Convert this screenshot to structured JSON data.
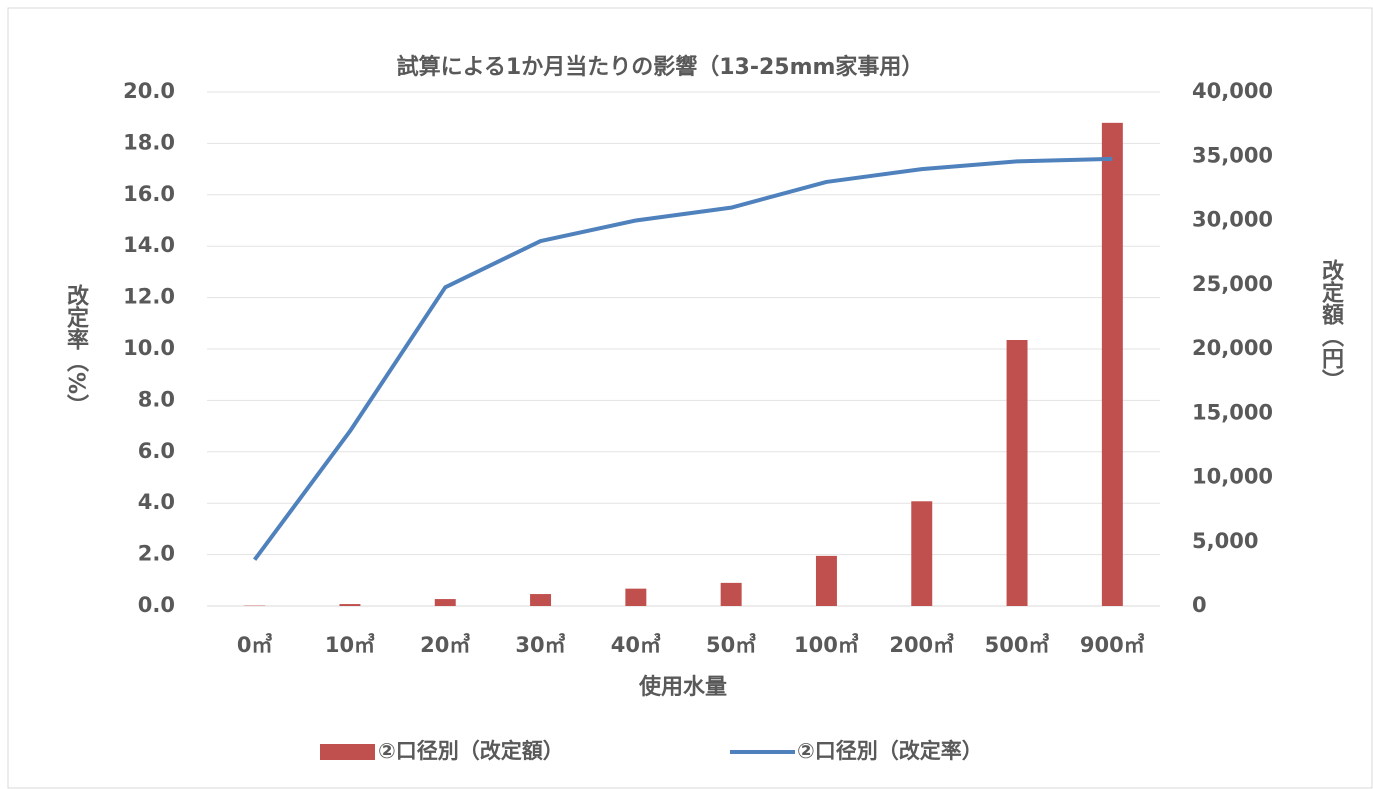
{
  "chart_data": {
    "type": "bar_line",
    "title": "試算による1か月当たりの影響（13-25mm家事用）",
    "x_label": "使用水量",
    "y_label": "改定率（%）",
    "y2_label": "改定額（円）",
    "categories": [
      "0㎥",
      "10㎥",
      "20㎥",
      "30㎥",
      "40㎥",
      "50㎥",
      "100㎥",
      "200㎥",
      "500㎥",
      "900㎥"
    ],
    "series": [
      {
        "name": "②口径別（改定額）",
        "type": "bar",
        "axis": "y2",
        "color": "#c0504d",
        "values": [
          30,
          150,
          540,
          930,
          1350,
          1800,
          3900,
          8150,
          20700,
          37600
        ]
      },
      {
        "name": "②口径別（改定率）",
        "type": "line",
        "axis": "y",
        "color": "#4f81bd",
        "values": [
          1.8,
          6.8,
          12.4,
          14.2,
          15.0,
          15.5,
          16.5,
          17.0,
          17.3,
          17.4
        ]
      }
    ],
    "ylim": [
      0,
      20
    ],
    "yticks": [
      {
        "value": 0,
        "label": "0.0"
      },
      {
        "value": 2,
        "label": "2.0"
      },
      {
        "value": 4,
        "label": "4.0"
      },
      {
        "value": 6,
        "label": "6.0"
      },
      {
        "value": 8,
        "label": "8.0"
      },
      {
        "value": 10,
        "label": "10.0"
      },
      {
        "value": 12,
        "label": "12.0"
      },
      {
        "value": 14,
        "label": "14.0"
      },
      {
        "value": 16,
        "label": "16.0"
      },
      {
        "value": 18,
        "label": "18.0"
      },
      {
        "value": 20,
        "label": "20.0"
      }
    ],
    "y2lim": [
      0,
      40000
    ],
    "y2ticks": [
      0,
      {
        "value": 5000,
        "label": "5,000"
      },
      {
        "value": 10000,
        "label": "10,000"
      },
      {
        "value": 15000,
        "label": "15,000"
      },
      {
        "value": 20000,
        "label": "20,000"
      },
      {
        "value": 25000,
        "label": "25,000"
      },
      {
        "value": 30000,
        "label": "30,000"
      },
      {
        "value": 35000,
        "label": "35,000"
      },
      {
        "value": 40000,
        "label": "40,000"
      }
    ],
    "grid": true,
    "legend": "bottom"
  }
}
